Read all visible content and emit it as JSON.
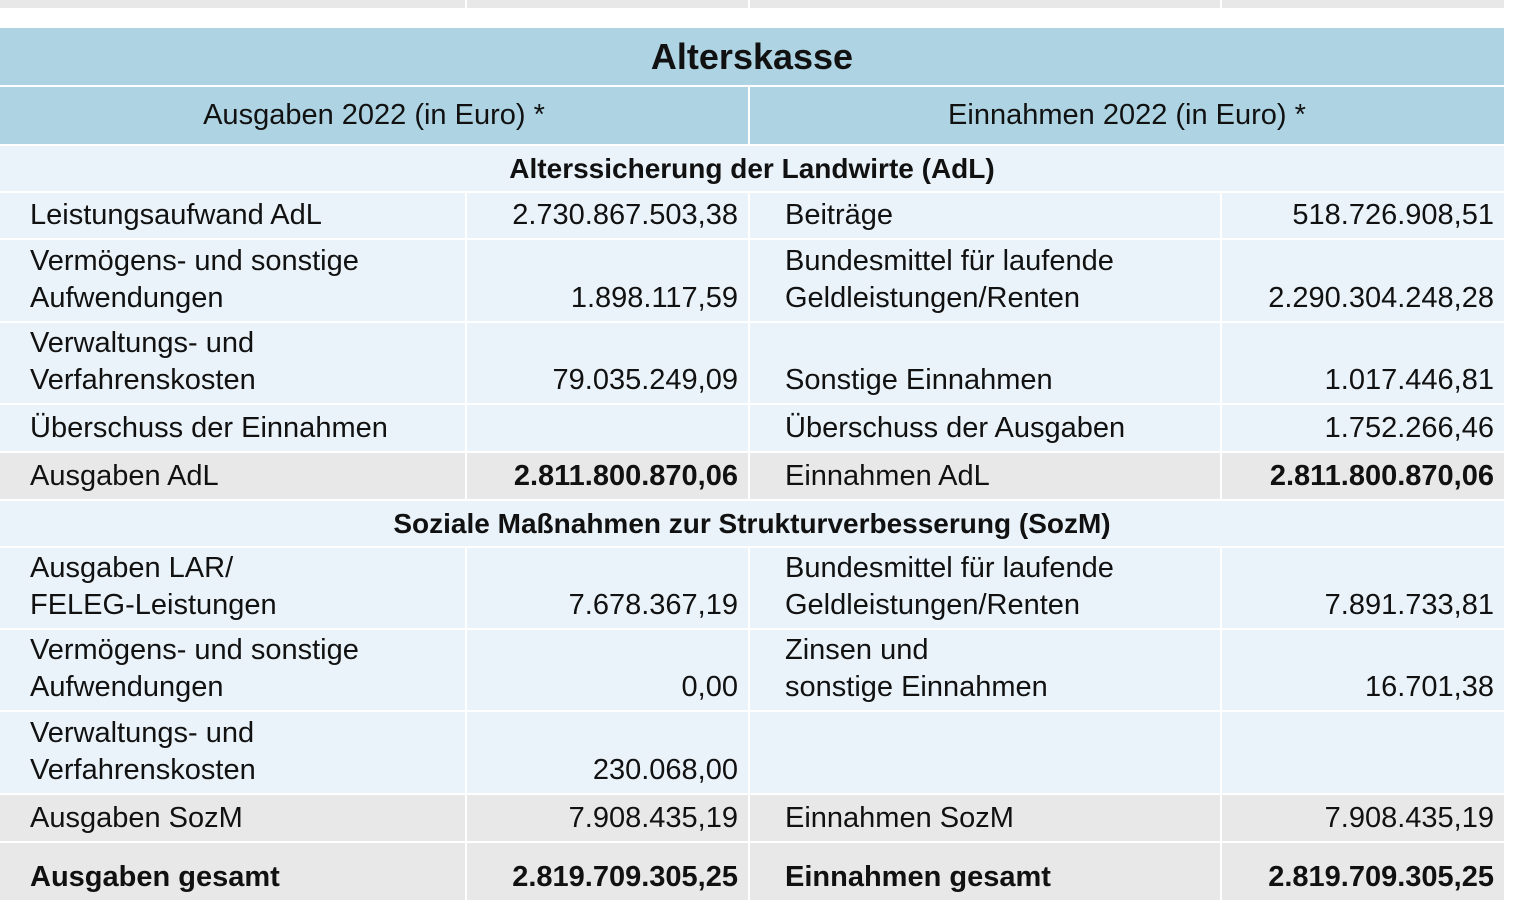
{
  "title": "Alterskasse",
  "headers": {
    "expenses": "Ausgaben 2022 (in Euro) *",
    "income": "Einnahmen 2022 (in Euro) *"
  },
  "sections": [
    {
      "title": "Alterssicherung der Landwirte (AdL)",
      "rows": [
        {
          "style": "blue",
          "h": 45,
          "l1": "Leistungsaufwand AdL",
          "v1": "2.730.867.503,38",
          "l2": "Beiträge",
          "v2": "518.726.908,51"
        },
        {
          "style": "blue",
          "h": 81,
          "l1": "Vermögens- und sonstige\nAufwendungen",
          "v1": "1.898.117,59",
          "l2": "Bundesmittel für laufende\nGeldleistungen/Renten",
          "v2": "2.290.304.248,28"
        },
        {
          "style": "blue",
          "h": 80,
          "l1": "Verwaltungs- und\nVerfahrenskosten",
          "v1": "79.035.249,09",
          "l2": "Sonstige Einnahmen",
          "v2": "1.017.446,81"
        },
        {
          "style": "blue",
          "h": 46,
          "l1": "Überschuss der Einnahmen",
          "v1": "",
          "l2": "Überschuss der Ausgaben",
          "v2": "1.752.266,46"
        },
        {
          "style": "gray",
          "h": 46,
          "l1": "Ausgaben AdL",
          "v1": "2.811.800.870,06",
          "l2": "Einnahmen AdL",
          "v2": "2.811.800.870,06",
          "boldv": true
        }
      ]
    },
    {
      "title": "Soziale Maßnahmen zur Strukturverbesserung (SozM)",
      "rows": [
        {
          "style": "blue",
          "h": 80,
          "l1": "Ausgaben LAR/\nFELEG-Leistungen",
          "v1": "7.678.367,19",
          "l2": "Bundesmittel für laufende\nGeldleistungen/Renten",
          "v2": "7.891.733,81"
        },
        {
          "style": "blue",
          "h": 80,
          "l1": "Vermögens- und sonstige\nAufwendungen",
          "v1": "0,00",
          "l2": "Zinsen und\nsonstige Einnahmen",
          "v2": "16.701,38"
        },
        {
          "style": "blue",
          "h": 81,
          "l1": "Verwaltungs- und\nVerfahrenskosten",
          "v1": "230.068,00",
          "l2": "",
          "v2": ""
        },
        {
          "style": "gray",
          "h": 46,
          "l1": "Ausgaben SozM",
          "v1": "7.908.435,19",
          "l2": "Einnahmen SozM",
          "v2": "7.908.435,19"
        },
        {
          "style": "gray",
          "h": 57,
          "l1": "Ausgaben gesamt",
          "v1": "2.819.709.305,25",
          "l2": "Einnahmen gesamt",
          "v2": "2.819.709.305,25",
          "boldall": true
        }
      ]
    }
  ]
}
